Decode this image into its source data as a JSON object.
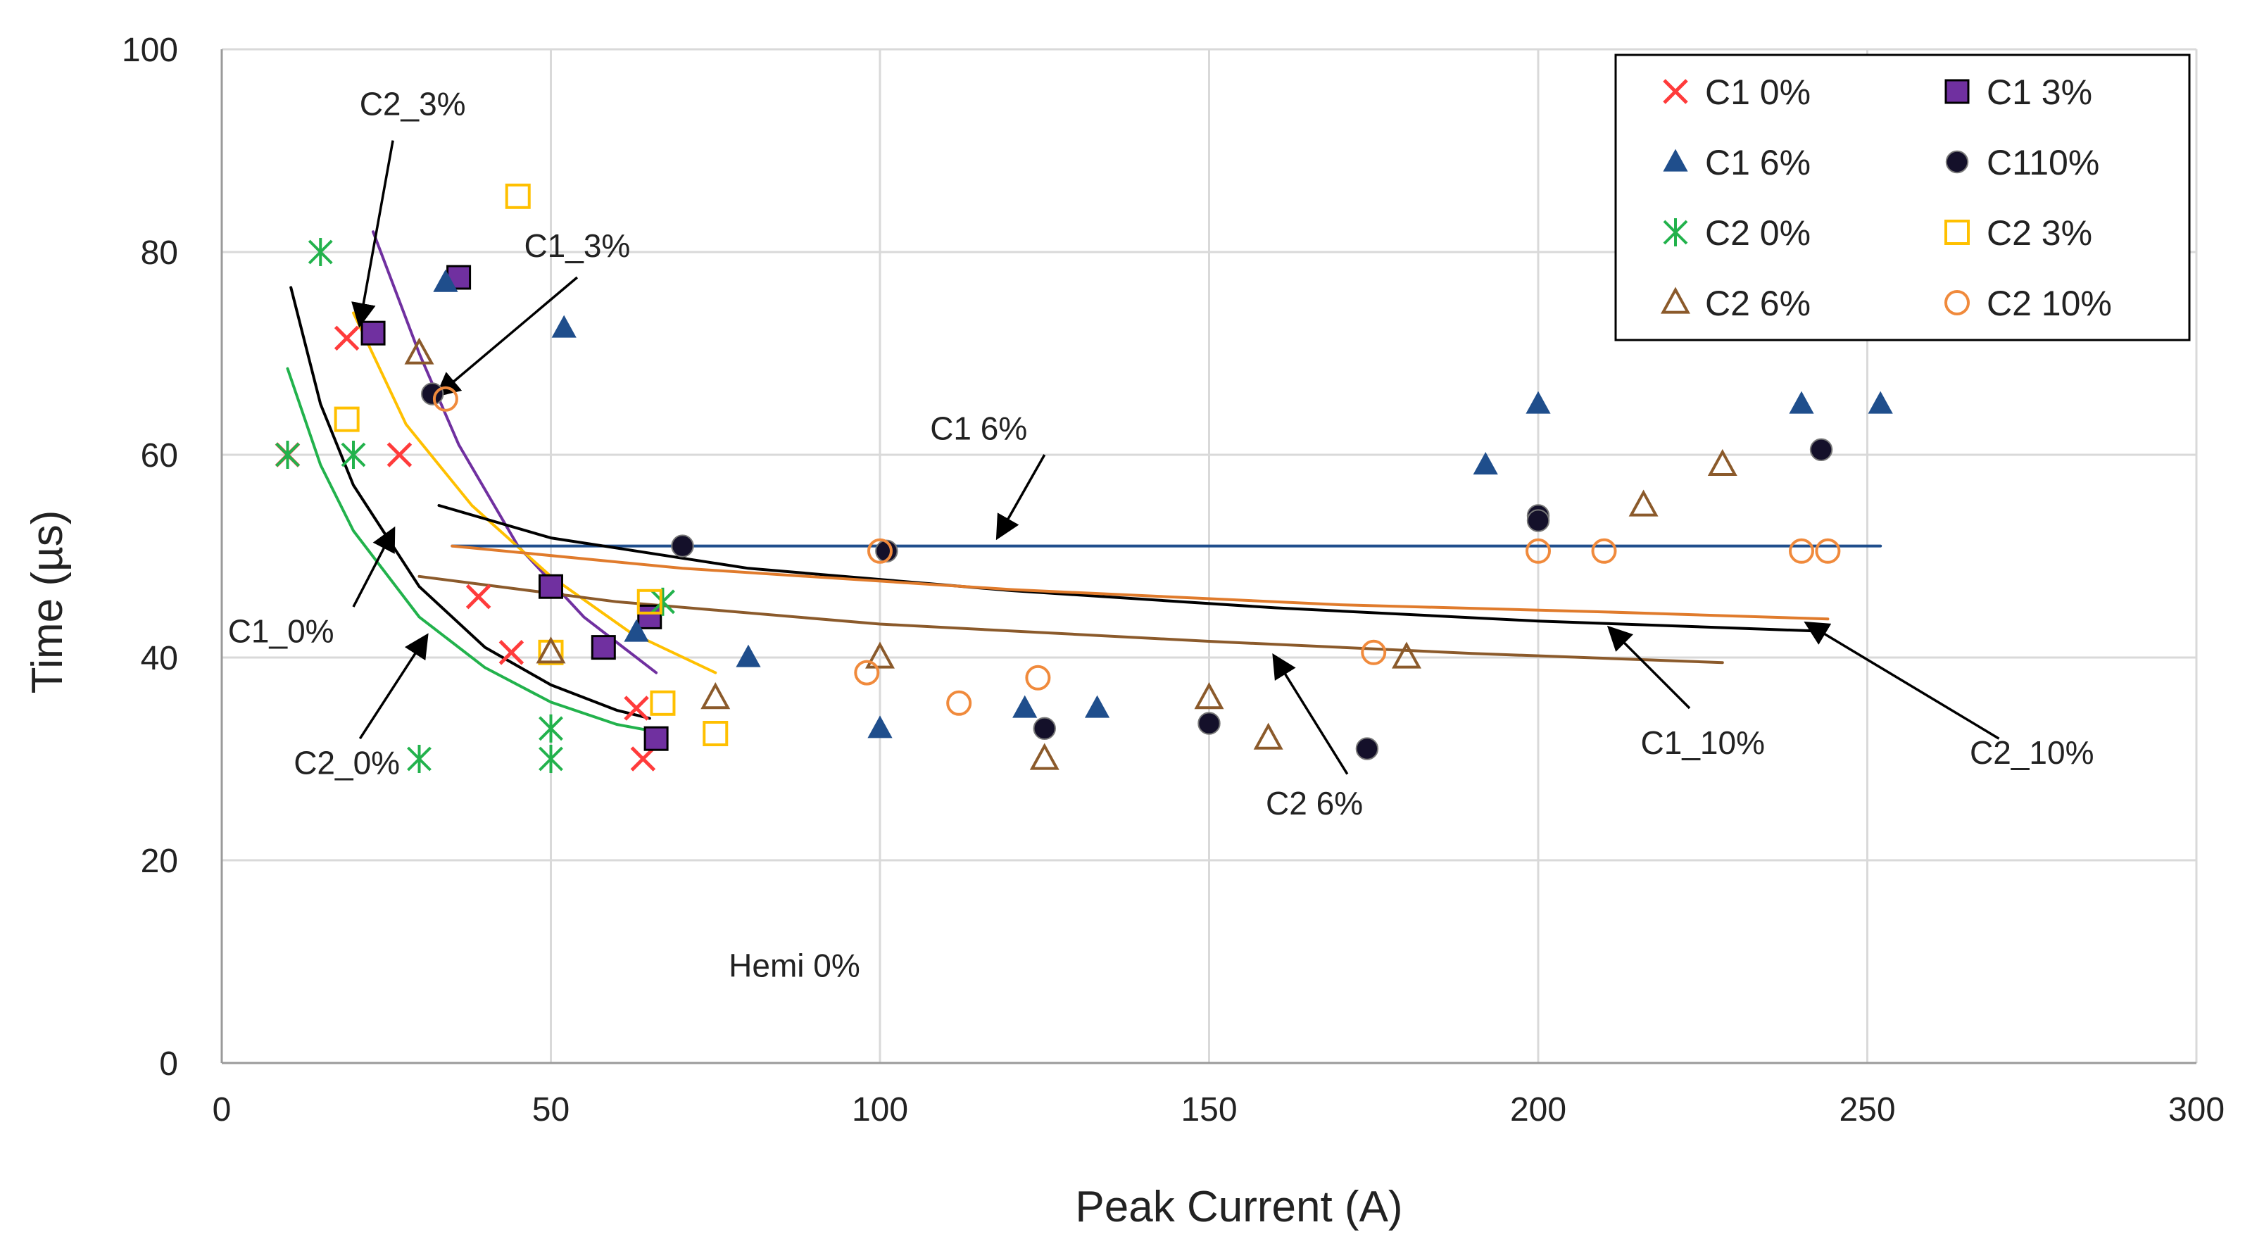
{
  "chart_data": {
    "type": "scatter",
    "title": "",
    "xlabel": "Peak Current (A)",
    "ylabel": "Time (µs)",
    "xlim": [
      0,
      300
    ],
    "ylim": [
      0,
      100
    ],
    "xticks": [
      0,
      50,
      100,
      150,
      200,
      250,
      300
    ],
    "yticks": [
      0,
      20,
      40,
      60,
      80,
      100
    ],
    "grid": true,
    "legend_position": "top-right",
    "series": [
      {
        "key": "c1_0",
        "name": "C1 0%",
        "marker": "x",
        "color": "#ff3b3b",
        "points": [
          [
            10,
            60
          ],
          [
            19,
            71.5
          ],
          [
            27,
            60
          ],
          [
            39,
            46
          ],
          [
            44,
            40.5
          ],
          [
            63,
            35
          ],
          [
            64,
            30
          ]
        ]
      },
      {
        "key": "c1_3",
        "name": "C1 3%",
        "marker": "square-filled",
        "color": "#7030a0",
        "points": [
          [
            23,
            72
          ],
          [
            36,
            77.5
          ],
          [
            50,
            47
          ],
          [
            58,
            41
          ],
          [
            65,
            44
          ],
          [
            66,
            32
          ]
        ]
      },
      {
        "key": "c1_6",
        "name": "C1 6%",
        "marker": "triangle-filled",
        "color": "#1f4e8c",
        "points": [
          [
            34,
            77
          ],
          [
            52,
            72.5
          ],
          [
            63,
            42.5
          ],
          [
            80,
            40
          ],
          [
            100,
            33
          ],
          [
            122,
            35
          ],
          [
            133,
            35
          ],
          [
            192,
            59
          ],
          [
            200,
            65
          ],
          [
            240,
            65
          ],
          [
            252,
            65
          ]
        ]
      },
      {
        "key": "c1_10",
        "name": "C110%",
        "marker": "circle-filled",
        "color": "#14102a",
        "points": [
          [
            32,
            66
          ],
          [
            70,
            51
          ],
          [
            101,
            50.5
          ],
          [
            125,
            33
          ],
          [
            150,
            33.5
          ],
          [
            174,
            31
          ],
          [
            200,
            54
          ],
          [
            200,
            53.5
          ],
          [
            243,
            60.5
          ]
        ]
      },
      {
        "key": "c2_0",
        "name": "C2 0%",
        "marker": "asterisk",
        "color": "#22b24c",
        "points": [
          [
            10,
            60
          ],
          [
            15,
            80
          ],
          [
            20,
            60
          ],
          [
            30,
            30
          ],
          [
            50,
            33
          ],
          [
            50,
            30
          ],
          [
            67,
            45.5
          ]
        ]
      },
      {
        "key": "c2_3",
        "name": "C2 3%",
        "marker": "square-open",
        "color": "#ffc000",
        "points": [
          [
            19,
            63.5
          ],
          [
            45,
            85.5
          ],
          [
            50,
            40.5
          ],
          [
            65,
            45.5
          ],
          [
            67,
            35.5
          ],
          [
            75,
            32.5
          ]
        ]
      },
      {
        "key": "c2_6",
        "name": "C2 6%",
        "marker": "triangle-open",
        "color": "#8b5a2b",
        "points": [
          [
            30,
            70
          ],
          [
            50,
            40.5
          ],
          [
            75,
            36
          ],
          [
            100,
            40
          ],
          [
            125,
            30
          ],
          [
            150,
            36
          ],
          [
            159,
            32
          ],
          [
            180,
            40
          ],
          [
            216,
            55
          ],
          [
            228,
            59
          ]
        ]
      },
      {
        "key": "c2_10",
        "name": "C2 10%",
        "marker": "circle-open",
        "color": "#f08a3c",
        "points": [
          [
            34,
            65.5
          ],
          [
            98,
            38.5
          ],
          [
            100,
            50.5
          ],
          [
            112,
            35.5
          ],
          [
            124,
            38
          ],
          [
            175,
            40.5
          ],
          [
            200,
            50.5
          ],
          [
            210,
            50.5
          ],
          [
            240,
            50.5
          ],
          [
            244,
            50.5
          ]
        ]
      }
    ],
    "trendlines": [
      {
        "key": "c1_0",
        "color": "#000000",
        "points": [
          [
            10.5,
            76.5
          ],
          [
            15,
            65
          ],
          [
            20,
            57
          ],
          [
            30,
            47
          ],
          [
            40,
            41
          ],
          [
            50,
            37.3
          ],
          [
            60,
            34.8
          ],
          [
            65,
            34
          ]
        ]
      },
      {
        "key": "c2_0",
        "color": "#22b24c",
        "points": [
          [
            10,
            68.5
          ],
          [
            15,
            59
          ],
          [
            20,
            52.5
          ],
          [
            30,
            44
          ],
          [
            40,
            39
          ],
          [
            50,
            35.6
          ],
          [
            60,
            33.4
          ],
          [
            65,
            32.8
          ]
        ]
      },
      {
        "key": "c1_3",
        "color": "#7030a0",
        "points": [
          [
            23,
            82
          ],
          [
            30,
            70
          ],
          [
            36,
            61
          ],
          [
            45,
            51
          ],
          [
            55,
            44
          ],
          [
            66,
            38.5
          ]
        ]
      },
      {
        "key": "c2_3",
        "color": "#ffc000",
        "points": [
          [
            20,
            74
          ],
          [
            28,
            63
          ],
          [
            38,
            55
          ],
          [
            50,
            48
          ],
          [
            62,
            42.5
          ],
          [
            75,
            38.5
          ]
        ]
      },
      {
        "key": "c1_6",
        "color": "#1f4e8c",
        "points": [
          [
            35,
            51
          ],
          [
            252,
            51
          ]
        ]
      },
      {
        "key": "c1_10",
        "color": "#000000",
        "points": [
          [
            33,
            55
          ],
          [
            50,
            51.8
          ],
          [
            80,
            48.8
          ],
          [
            120,
            46.6
          ],
          [
            160,
            44.9
          ],
          [
            200,
            43.6
          ],
          [
            243,
            42.6
          ]
        ]
      },
      {
        "key": "c2_10",
        "color": "#e07b2c",
        "points": [
          [
            35,
            51
          ],
          [
            70,
            48.8
          ],
          [
            120,
            46.7
          ],
          [
            170,
            45.2
          ],
          [
            210,
            44.5
          ],
          [
            244,
            43.8
          ]
        ]
      },
      {
        "key": "c2_6",
        "color": "#8b5a2b",
        "points": [
          [
            30,
            48
          ],
          [
            60,
            45.5
          ],
          [
            100,
            43.3
          ],
          [
            150,
            41.6
          ],
          [
            190,
            40.4
          ],
          [
            228,
            39.5
          ]
        ]
      }
    ],
    "annotations": [
      {
        "label": "C2_3%",
        "text_at": [
          29,
          93.5
        ],
        "arrow_from": [
          26,
          91
        ],
        "arrow_to": [
          21,
          73
        ]
      },
      {
        "label": "C1_3%",
        "text_at": [
          54,
          79.5
        ],
        "arrow_from": [
          54,
          77.5
        ],
        "arrow_to": [
          33,
          66
        ]
      },
      {
        "label": "C1 6%",
        "text_at": [
          115,
          61.5
        ],
        "arrow_from": [
          125,
          60
        ],
        "arrow_to": [
          118,
          52
        ]
      },
      {
        "label": "C1_0%",
        "text_at": [
          9,
          41.5
        ],
        "arrow_from": [
          20,
          45
        ],
        "arrow_to": [
          26,
          52.5
        ]
      },
      {
        "label": "C2_0%",
        "text_at": [
          19,
          28.5
        ],
        "arrow_from": [
          21,
          32
        ],
        "arrow_to": [
          31,
          42
        ]
      },
      {
        "label": "C2 6%",
        "text_at": [
          166,
          24.5
        ],
        "arrow_from": [
          171,
          28.5
        ],
        "arrow_to": [
          160,
          40
        ]
      },
      {
        "label": "C1_10%",
        "text_at": [
          225,
          30.5
        ],
        "arrow_from": [
          223,
          35
        ],
        "arrow_to": [
          211,
          42.8
        ]
      },
      {
        "label": "C2_10%",
        "text_at": [
          275,
          29.5
        ],
        "arrow_from": [
          270,
          32
        ],
        "arrow_to": [
          241,
          43.3
        ]
      },
      {
        "label": "Hemi 0%",
        "text_at": [
          87,
          8.5
        ]
      }
    ]
  }
}
